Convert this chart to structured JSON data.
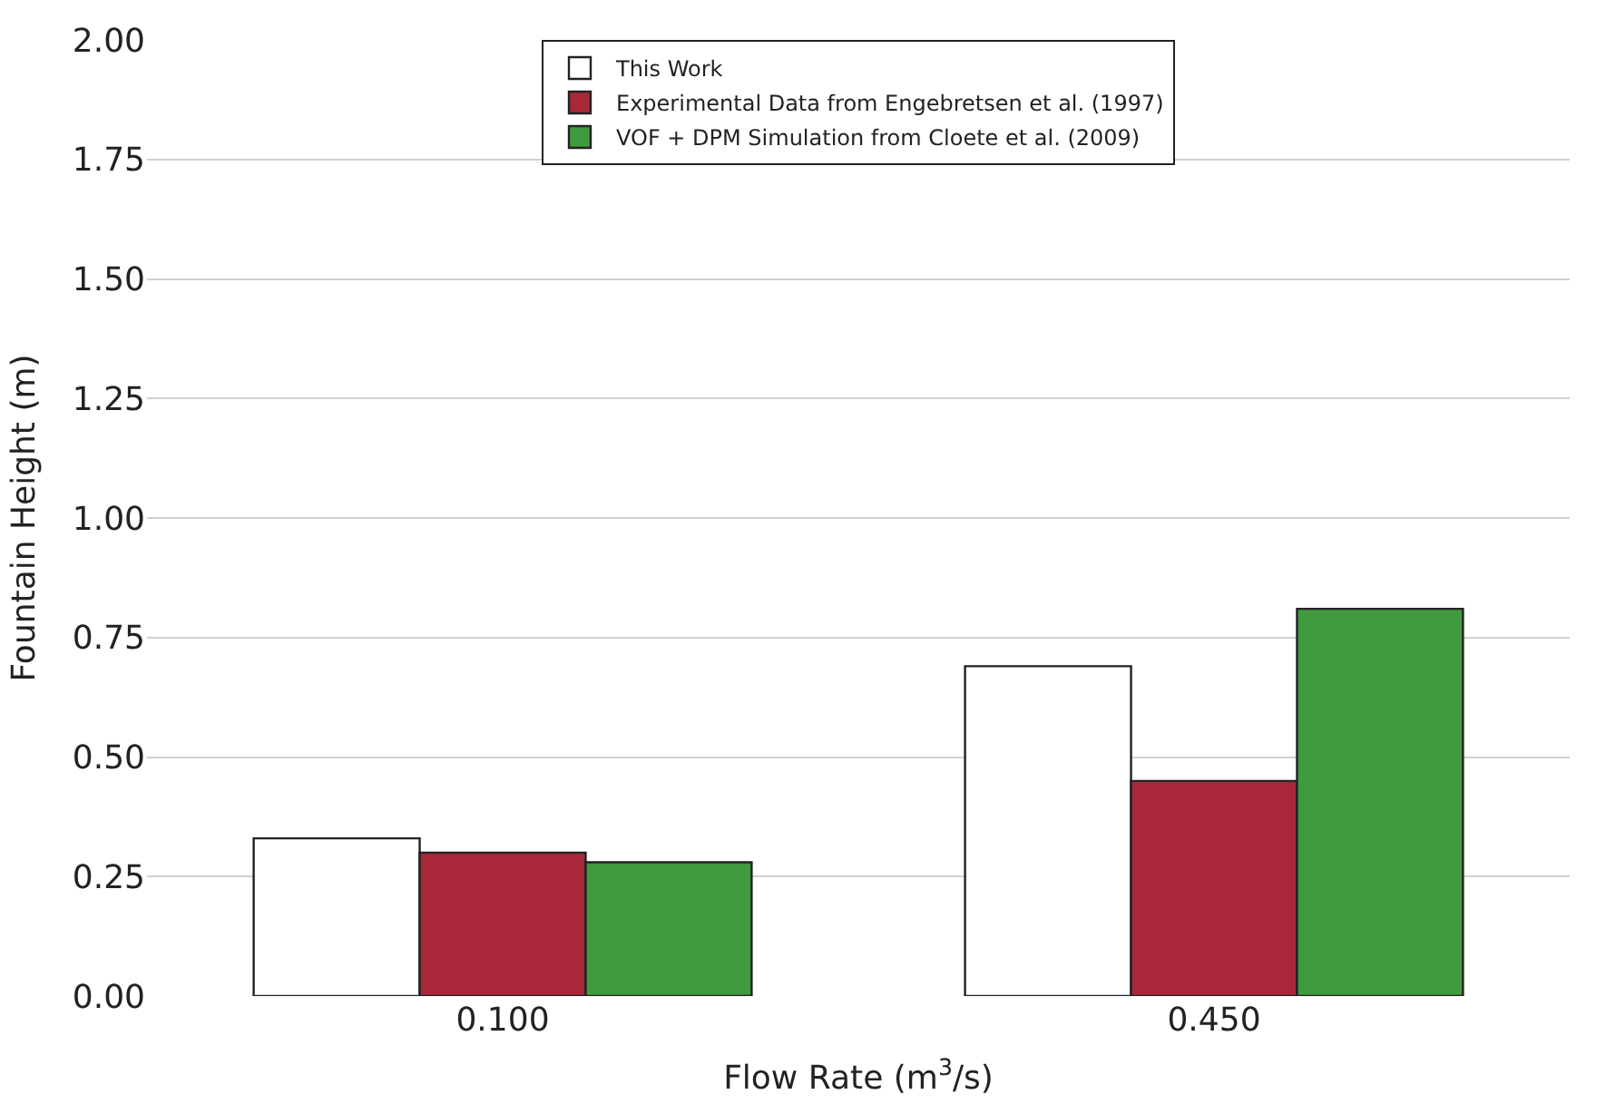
{
  "chart_data": {
    "type": "bar",
    "xlabel": "Flow Rate (m$^{3}$/s)",
    "ylabel": "Fountain Height (m)",
    "categories": [
      "0.100",
      "0.450"
    ],
    "series": [
      {
        "name": "This Work",
        "color": "#ffffff",
        "values": [
          0.33,
          0.69
        ]
      },
      {
        "name": "Experimental Data from Engebretsen et al. (1997)",
        "color": "#a8283a",
        "values": [
          0.3,
          0.45
        ]
      },
      {
        "name": "VOF + DPM Simulation from Cloete et al. (2009)",
        "color": "#3f9a40",
        "values": [
          0.28,
          0.81
        ]
      }
    ],
    "ylim": [
      0,
      2
    ],
    "yticks": [
      {
        "value": 0,
        "label": "0.00"
      },
      {
        "value": 0.25,
        "label": "0.25"
      },
      {
        "value": 0.5,
        "label": "0.50"
      },
      {
        "value": 0.75,
        "label": "0.75"
      },
      {
        "value": 1,
        "label": "1.00"
      },
      {
        "value": 1.25,
        "label": "1.25"
      },
      {
        "value": 1.5,
        "label": "1.50"
      },
      {
        "value": 1.75,
        "label": "1.75"
      },
      {
        "value": 2,
        "label": "2.00"
      }
    ],
    "grid": "y",
    "legend": "top"
  }
}
